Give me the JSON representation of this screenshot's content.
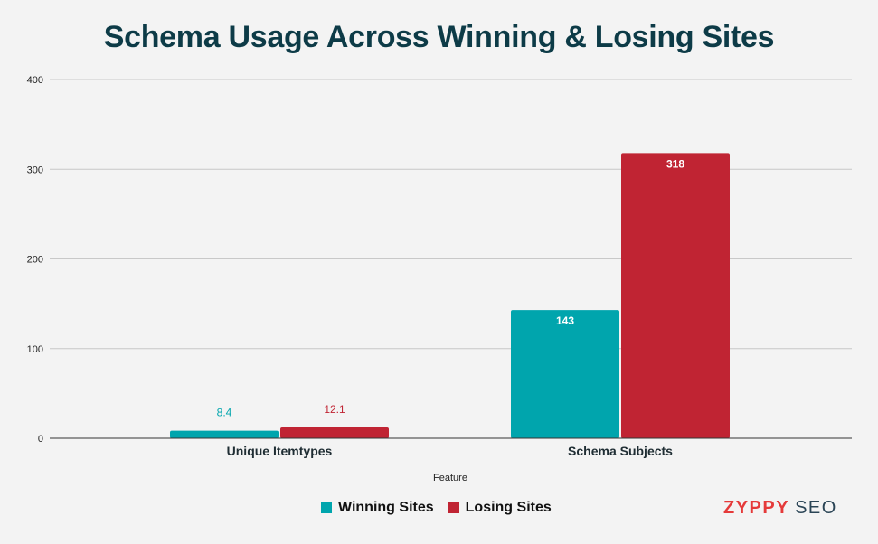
{
  "chart_data": {
    "type": "bar",
    "title": "Schema Usage Across Winning & Losing Sites",
    "xlabel": "Feature",
    "ylabel": "",
    "categories": [
      "Unique Itemtypes",
      "Schema Subjects"
    ],
    "series": [
      {
        "name": "Winning Sites",
        "color": "#00a5ad",
        "values": [
          8.4,
          143
        ]
      },
      {
        "name": "Losing Sites",
        "color": "#c02433",
        "values": [
          12.1,
          318
        ]
      }
    ],
    "ylim": [
      0,
      400
    ],
    "yticks": [
      0,
      100,
      200,
      300,
      400
    ],
    "grid": true,
    "legend_position": "bottom"
  },
  "brand": {
    "name": "ZYPPY",
    "suffix": "SEO",
    "primary_color": "#e53a3a",
    "secondary_color": "#2a4455"
  }
}
